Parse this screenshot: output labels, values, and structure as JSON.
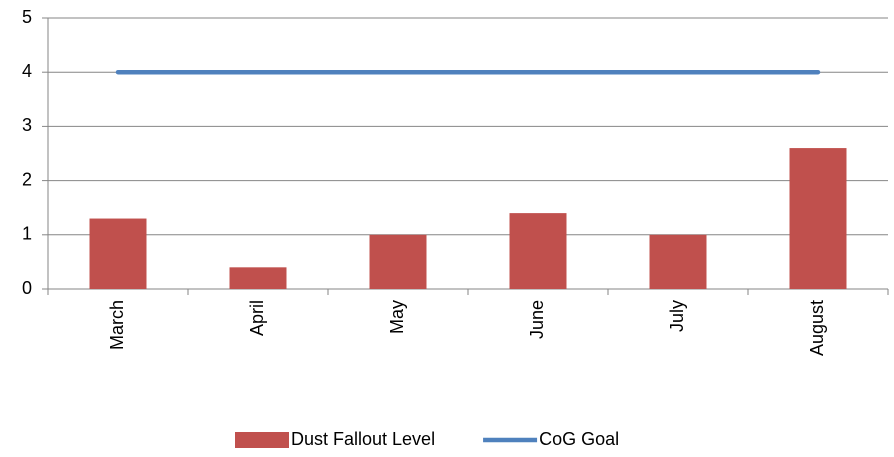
{
  "chart_data": {
    "type": "bar",
    "categories": [
      "March",
      "April",
      "May",
      "June",
      "July",
      "August"
    ],
    "series": [
      {
        "name": "Dust Fallout Level",
        "type": "bar",
        "color": "#c0504d",
        "values": [
          1.3,
          0.4,
          1.0,
          1.4,
          1.0,
          2.6
        ]
      },
      {
        "name": "CoG Goal",
        "type": "line",
        "color": "#4f81bd",
        "values": [
          4,
          4,
          4,
          4,
          4,
          4
        ]
      }
    ],
    "ylim": [
      0,
      5
    ],
    "yticks": [
      0,
      1,
      2,
      3,
      4,
      5
    ],
    "grid": true,
    "legend": "bottom"
  }
}
